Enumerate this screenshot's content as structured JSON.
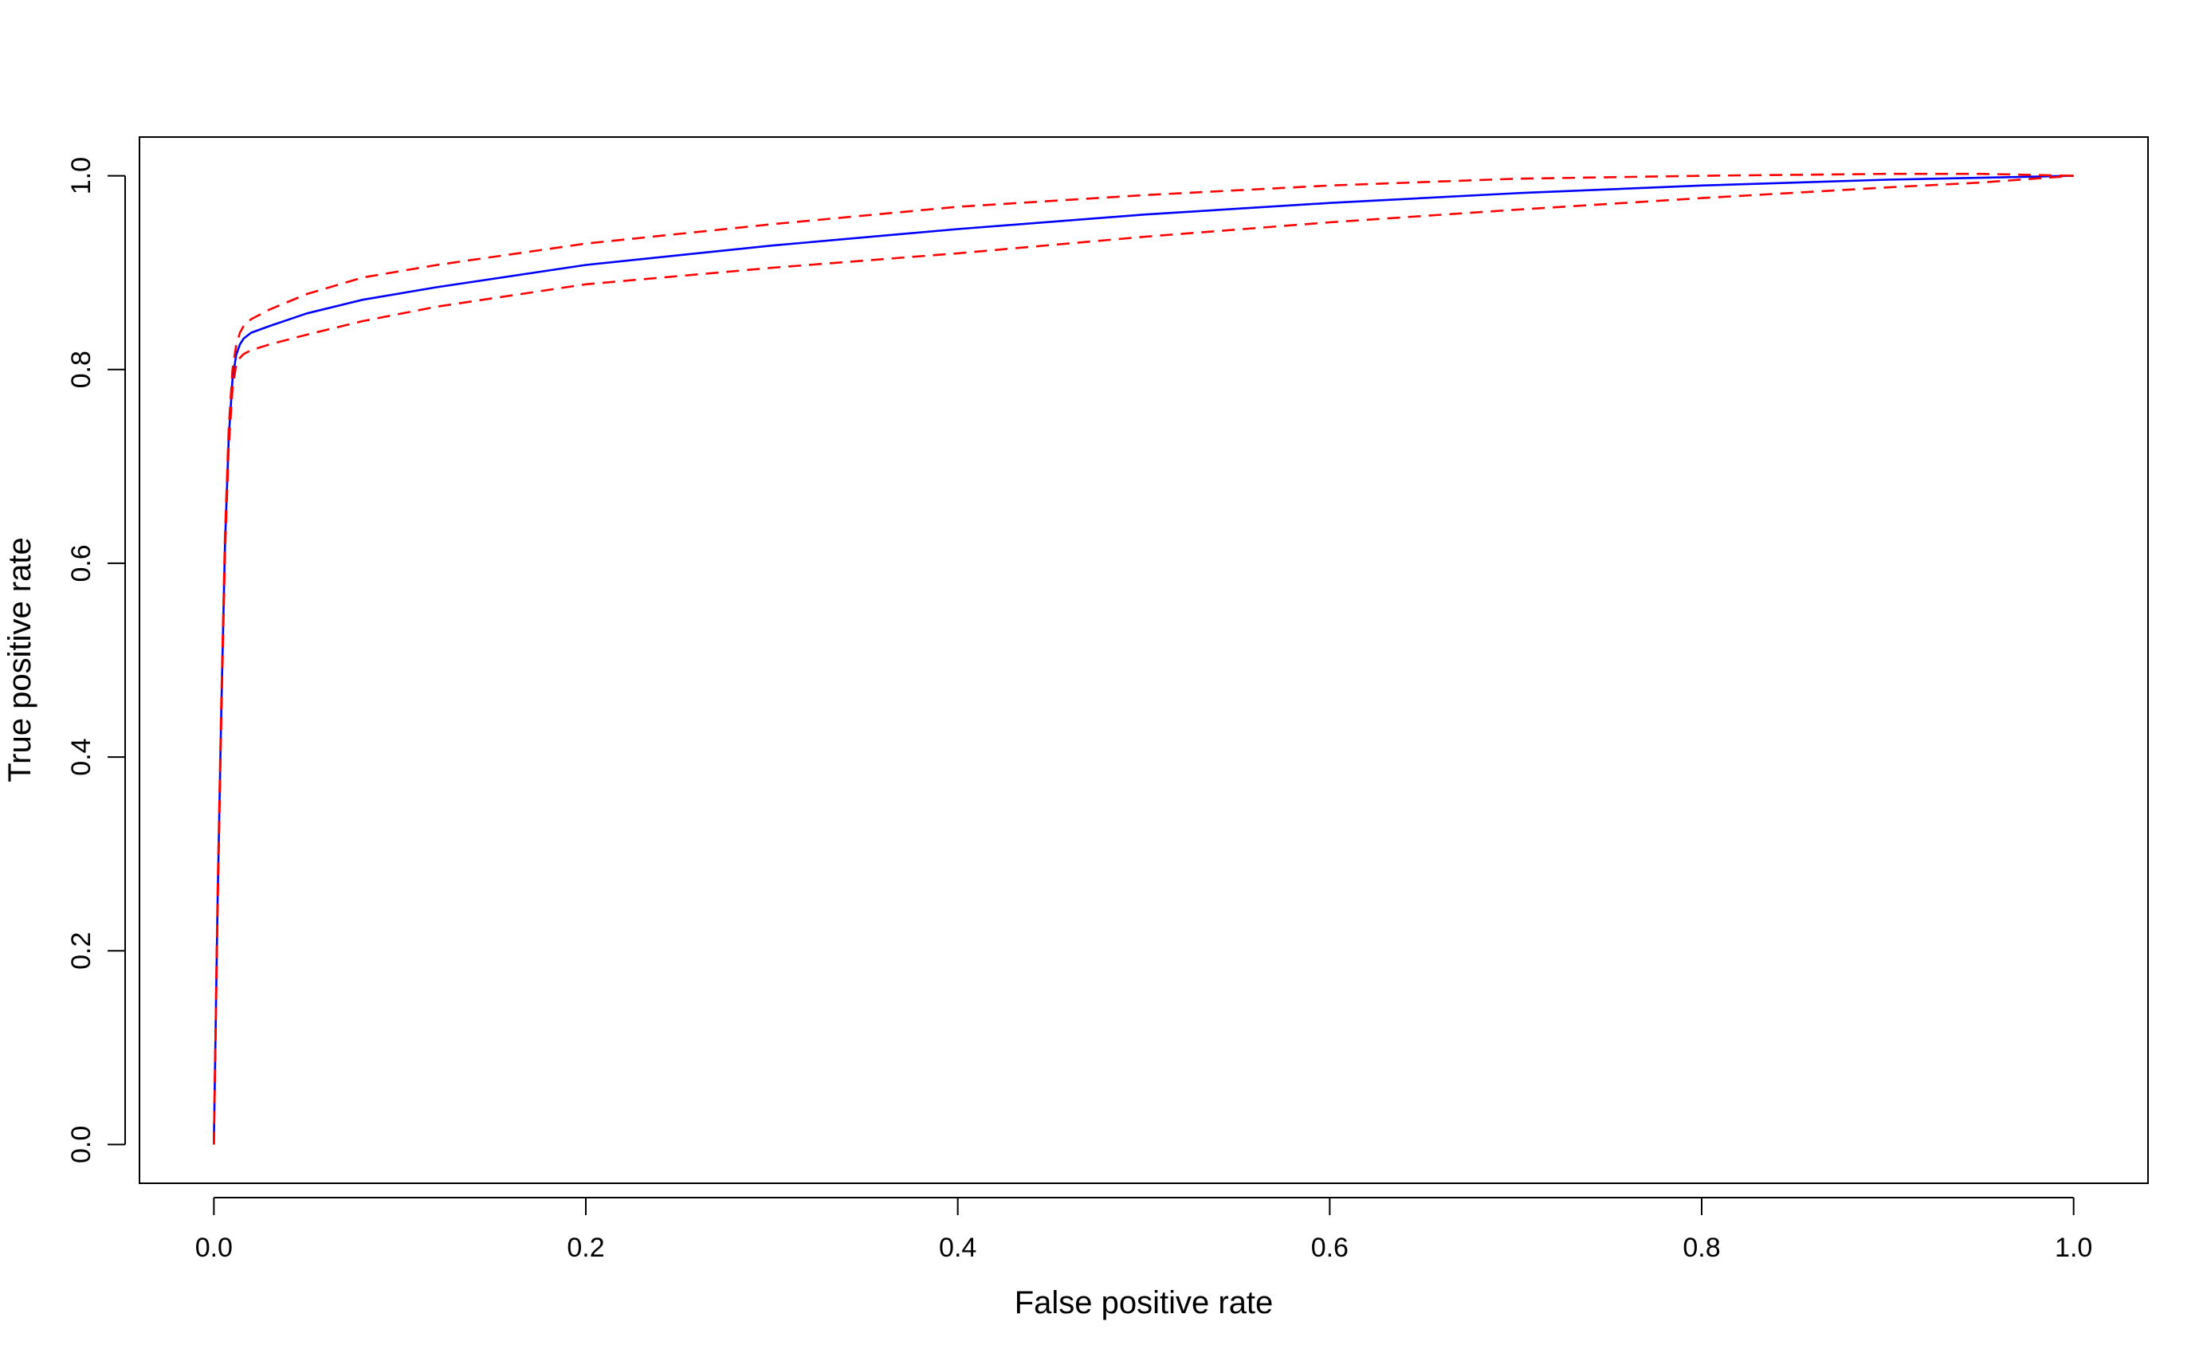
{
  "chart_data": {
    "type": "line",
    "title": "",
    "xlabel": "False positive rate",
    "ylabel": "True positive rate",
    "xlim": [
      -0.04,
      1.04
    ],
    "ylim": [
      -0.04,
      1.04
    ],
    "x_ticks": [
      0.0,
      0.2,
      0.4,
      0.6,
      0.8,
      1.0
    ],
    "x_tick_labels": [
      "0.0",
      "0.2",
      "0.4",
      "0.6",
      "0.8",
      "1.0"
    ],
    "y_ticks": [
      0.0,
      0.2,
      0.4,
      0.6,
      0.8,
      1.0
    ],
    "y_tick_labels": [
      "0.0",
      "0.2",
      "0.4",
      "0.6",
      "0.8",
      "1.0"
    ],
    "grid": false,
    "legend": "none",
    "series": [
      {
        "color": "#0000ff",
        "style": "solid",
        "x": [
          0.0,
          0.002,
          0.004,
          0.006,
          0.008,
          0.01,
          0.012,
          0.014,
          0.016,
          0.02,
          0.03,
          0.05,
          0.08,
          0.12,
          0.2,
          0.3,
          0.4,
          0.5,
          0.6,
          0.7,
          0.8,
          0.9,
          0.95,
          1.0
        ],
        "y": [
          0.0,
          0.25,
          0.45,
          0.62,
          0.73,
          0.79,
          0.815,
          0.826,
          0.832,
          0.838,
          0.845,
          0.858,
          0.872,
          0.885,
          0.908,
          0.928,
          0.945,
          0.96,
          0.972,
          0.982,
          0.99,
          0.996,
          0.998,
          1.0
        ]
      },
      {
        "color": "#ff0000",
        "style": "dashed",
        "x": [
          0.0,
          0.002,
          0.004,
          0.006,
          0.008,
          0.01,
          0.012,
          0.014,
          0.016,
          0.02,
          0.03,
          0.05,
          0.08,
          0.12,
          0.2,
          0.3,
          0.4,
          0.5,
          0.6,
          0.7,
          0.8,
          0.9,
          0.95,
          1.0
        ],
        "y": [
          0.0,
          0.26,
          0.46,
          0.63,
          0.74,
          0.8,
          0.825,
          0.838,
          0.845,
          0.852,
          0.862,
          0.878,
          0.895,
          0.908,
          0.93,
          0.95,
          0.968,
          0.98,
          0.99,
          0.997,
          1.0,
          1.002,
          1.002,
          1.0
        ]
      },
      {
        "color": "#ff0000",
        "style": "dashed",
        "x": [
          0.0,
          0.002,
          0.004,
          0.006,
          0.008,
          0.01,
          0.012,
          0.014,
          0.016,
          0.02,
          0.03,
          0.05,
          0.08,
          0.12,
          0.2,
          0.3,
          0.4,
          0.5,
          0.6,
          0.7,
          0.8,
          0.9,
          0.95,
          1.0
        ],
        "y": [
          0.0,
          0.24,
          0.44,
          0.61,
          0.72,
          0.78,
          0.805,
          0.812,
          0.816,
          0.82,
          0.826,
          0.836,
          0.85,
          0.865,
          0.888,
          0.905,
          0.92,
          0.937,
          0.952,
          0.965,
          0.977,
          0.988,
          0.993,
          1.0
        ]
      }
    ]
  }
}
